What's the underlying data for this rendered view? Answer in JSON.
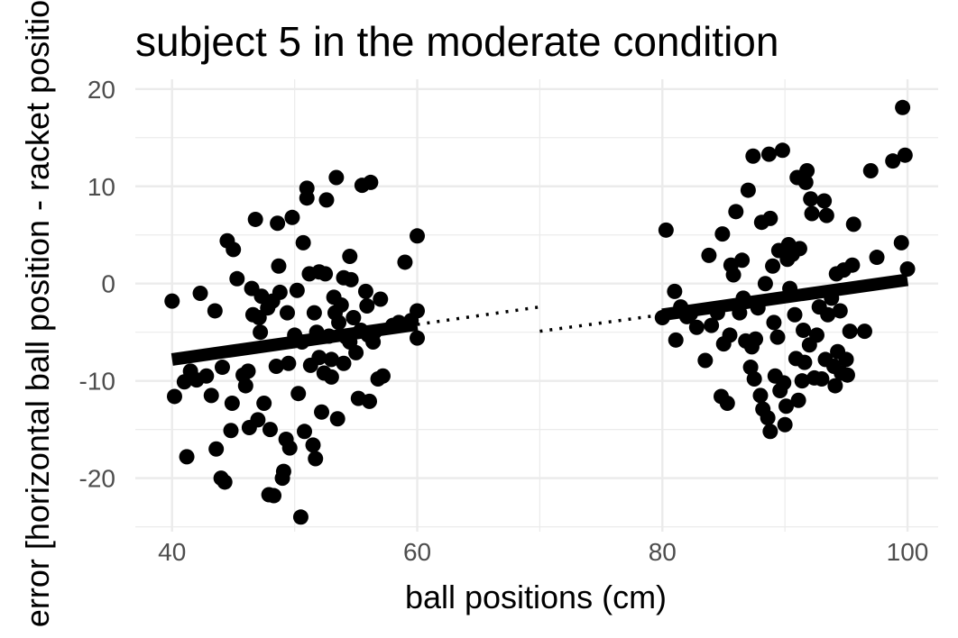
{
  "chart_data": {
    "type": "scatter",
    "title": "subject 5 in the moderate condition",
    "xlabel": "ball positions (cm)",
    "ylabel": "error [horizontal ball position - racket position]",
    "xlim": [
      37,
      102.5
    ],
    "ylim": [
      -25.5,
      21
    ],
    "x_ticks": [
      40,
      60,
      80,
      100
    ],
    "y_ticks": [
      -20,
      -10,
      0,
      10,
      20
    ],
    "x_tick_labels": [
      "40",
      "60",
      "80",
      "100"
    ],
    "y_tick_labels": [
      "-20",
      "-10",
      "0",
      "10",
      "20"
    ],
    "grid": true,
    "point_color": "#000000",
    "points": [
      [
        40.0,
        -1.8
      ],
      [
        40.2,
        -11.6
      ],
      [
        41.0,
        -10.1
      ],
      [
        41.2,
        -17.8
      ],
      [
        41.5,
        -9.0
      ],
      [
        42.0,
        -9.9
      ],
      [
        42.3,
        -1.0
      ],
      [
        42.8,
        -9.5
      ],
      [
        43.2,
        -11.5
      ],
      [
        43.5,
        -2.8
      ],
      [
        43.6,
        -17.0
      ],
      [
        44.0,
        -20.0
      ],
      [
        44.3,
        -20.4
      ],
      [
        44.1,
        -8.6
      ],
      [
        44.5,
        4.4
      ],
      [
        44.8,
        -15.1
      ],
      [
        44.9,
        -12.3
      ],
      [
        45.0,
        3.5
      ],
      [
        45.3,
        0.5
      ],
      [
        45.8,
        -9.4
      ],
      [
        46.0,
        -10.5
      ],
      [
        46.2,
        -9.0
      ],
      [
        46.3,
        -14.8
      ],
      [
        46.6,
        -3.2
      ],
      [
        46.8,
        6.6
      ],
      [
        46.5,
        -0.5
      ],
      [
        47.0,
        -14.0
      ],
      [
        47.1,
        -3.5
      ],
      [
        47.2,
        -5.0
      ],
      [
        47.3,
        -1.3
      ],
      [
        47.5,
        -12.3
      ],
      [
        47.8,
        -2.5
      ],
      [
        47.9,
        -21.7
      ],
      [
        48.0,
        -15.0
      ],
      [
        48.2,
        -1.8
      ],
      [
        48.3,
        -21.8
      ],
      [
        48.5,
        -8.5
      ],
      [
        48.6,
        6.2
      ],
      [
        48.7,
        1.8
      ],
      [
        48.8,
        -0.9
      ],
      [
        49.0,
        -20.0
      ],
      [
        49.1,
        -19.3
      ],
      [
        49.3,
        -16.0
      ],
      [
        49.4,
        -3.0
      ],
      [
        49.5,
        -8.2
      ],
      [
        49.6,
        -16.9
      ],
      [
        49.8,
        6.8
      ],
      [
        50.0,
        -5.3
      ],
      [
        50.2,
        -0.7
      ],
      [
        50.3,
        -11.3
      ],
      [
        50.5,
        -24.0
      ],
      [
        50.6,
        -6.0
      ],
      [
        50.7,
        4.2
      ],
      [
        50.8,
        -15.2
      ],
      [
        51.0,
        9.8
      ],
      [
        51.0,
        8.8
      ],
      [
        51.2,
        1.0
      ],
      [
        51.3,
        -8.4
      ],
      [
        51.5,
        -16.6
      ],
      [
        51.6,
        -3.0
      ],
      [
        51.7,
        -18.0
      ],
      [
        51.8,
        -5.0
      ],
      [
        52.0,
        -7.6
      ],
      [
        52.0,
        1.2
      ],
      [
        52.2,
        -13.2
      ],
      [
        52.4,
        -9.2
      ],
      [
        52.5,
        1.0
      ],
      [
        52.6,
        8.6
      ],
      [
        52.8,
        -5.4
      ],
      [
        53.0,
        -7.8
      ],
      [
        53.0,
        -9.6
      ],
      [
        53.2,
        -1.4
      ],
      [
        53.3,
        -3.0
      ],
      [
        53.4,
        10.9
      ],
      [
        53.5,
        -13.9
      ],
      [
        53.6,
        -4.0
      ],
      [
        53.8,
        -2.2
      ],
      [
        54.0,
        -8.2
      ],
      [
        54.0,
        0.6
      ],
      [
        54.2,
        -5.5
      ],
      [
        54.5,
        -6.0
      ],
      [
        54.5,
        2.8
      ],
      [
        54.6,
        0.4
      ],
      [
        54.8,
        -3.5
      ],
      [
        55.0,
        -7.1
      ],
      [
        55.2,
        -11.8
      ],
      [
        55.4,
        -4.8
      ],
      [
        55.5,
        10.1
      ],
      [
        55.8,
        -0.8
      ],
      [
        55.9,
        -2.3
      ],
      [
        56.0,
        -5.3
      ],
      [
        56.1,
        -12.1
      ],
      [
        56.2,
        10.4
      ],
      [
        56.4,
        -6.0
      ],
      [
        56.5,
        -5.0
      ],
      [
        56.8,
        -9.8
      ],
      [
        57.0,
        -1.6
      ],
      [
        57.2,
        -9.5
      ],
      [
        58.0,
        -4.3
      ],
      [
        58.5,
        -4.0
      ],
      [
        59.0,
        2.2
      ],
      [
        59.5,
        -3.8
      ],
      [
        60.0,
        4.9
      ],
      [
        60.0,
        -2.8
      ],
      [
        60.0,
        -5.6
      ],
      [
        80.0,
        -3.5
      ],
      [
        80.3,
        5.5
      ],
      [
        81.0,
        -0.8
      ],
      [
        81.1,
        -5.8
      ],
      [
        81.5,
        -2.4
      ],
      [
        82.0,
        -3.4
      ],
      [
        82.3,
        -3.1
      ],
      [
        82.8,
        -4.5
      ],
      [
        83.5,
        -7.9
      ],
      [
        83.8,
        2.9
      ],
      [
        84.0,
        -4.3
      ],
      [
        84.5,
        -3.0
      ],
      [
        84.8,
        -11.6
      ],
      [
        84.9,
        5.1
      ],
      [
        85.0,
        -6.2
      ],
      [
        85.3,
        -12.3
      ],
      [
        85.5,
        -5.3
      ],
      [
        85.6,
        1.9
      ],
      [
        85.8,
        0.9
      ],
      [
        86.0,
        7.4
      ],
      [
        86.3,
        -3.0
      ],
      [
        86.5,
        2.4
      ],
      [
        86.6,
        -1.5
      ],
      [
        86.8,
        -5.9
      ],
      [
        87.0,
        9.6
      ],
      [
        87.2,
        -8.6
      ],
      [
        87.3,
        -6.5
      ],
      [
        87.4,
        13.1
      ],
      [
        87.5,
        -9.8
      ],
      [
        87.6,
        -5.7
      ],
      [
        87.8,
        -2.5
      ],
      [
        88.0,
        -11.5
      ],
      [
        88.1,
        6.3
      ],
      [
        88.2,
        -12.9
      ],
      [
        88.4,
        0.0
      ],
      [
        88.6,
        -13.8
      ],
      [
        88.7,
        13.3
      ],
      [
        88.8,
        6.7
      ],
      [
        88.8,
        -15.2
      ],
      [
        89.0,
        1.8
      ],
      [
        89.1,
        -4.0
      ],
      [
        89.2,
        -9.5
      ],
      [
        89.4,
        -5.5
      ],
      [
        89.5,
        3.4
      ],
      [
        89.6,
        -11.0
      ],
      [
        89.8,
        13.7
      ],
      [
        89.9,
        -10.2
      ],
      [
        90.0,
        -14.5
      ],
      [
        90.1,
        -12.6
      ],
      [
        90.2,
        2.5
      ],
      [
        90.3,
        4.0
      ],
      [
        90.4,
        -0.5
      ],
      [
        90.6,
        3.0
      ],
      [
        90.8,
        -3.2
      ],
      [
        90.9,
        -7.7
      ],
      [
        91.0,
        10.9
      ],
      [
        91.1,
        -12.0
      ],
      [
        91.2,
        3.6
      ],
      [
        91.4,
        -10.0
      ],
      [
        91.5,
        -4.8
      ],
      [
        91.6,
        -8.1
      ],
      [
        91.7,
        10.4
      ],
      [
        91.8,
        11.6
      ],
      [
        92.0,
        -6.3
      ],
      [
        92.1,
        8.7
      ],
      [
        92.2,
        7.2
      ],
      [
        92.4,
        -9.7
      ],
      [
        92.6,
        -5.3
      ],
      [
        92.8,
        -2.4
      ],
      [
        93.0,
        -9.8
      ],
      [
        93.2,
        8.5
      ],
      [
        93.3,
        -7.8
      ],
      [
        93.4,
        7.0
      ],
      [
        93.5,
        -3.2
      ],
      [
        93.8,
        -1.5
      ],
      [
        94.0,
        -8.5
      ],
      [
        94.1,
        -10.5
      ],
      [
        94.2,
        1.0
      ],
      [
        94.3,
        -7.0
      ],
      [
        94.5,
        -2.8
      ],
      [
        94.6,
        -9.2
      ],
      [
        94.8,
        1.4
      ],
      [
        95.0,
        -7.8
      ],
      [
        95.1,
        -9.4
      ],
      [
        95.3,
        -4.9
      ],
      [
        95.5,
        1.9
      ],
      [
        95.6,
        6.1
      ],
      [
        96.5,
        -4.9
      ],
      [
        97.0,
        11.6
      ],
      [
        97.5,
        2.7
      ],
      [
        98.8,
        12.6
      ],
      [
        99.5,
        4.2
      ],
      [
        99.6,
        18.1
      ],
      [
        99.8,
        13.2
      ],
      [
        100.0,
        1.5
      ]
    ],
    "fit_lines": [
      {
        "style": "solid",
        "x": [
          40,
          60
        ],
        "y": [
          -7.8,
          -4.2
        ]
      },
      {
        "style": "dotted",
        "x": [
          60,
          70
        ],
        "y": [
          -4.2,
          -2.4
        ]
      },
      {
        "style": "dotted",
        "x": [
          70,
          80
        ],
        "y": [
          -4.9,
          -3.2
        ]
      },
      {
        "style": "solid",
        "x": [
          80,
          100
        ],
        "y": [
          -3.2,
          0.4
        ]
      }
    ]
  }
}
